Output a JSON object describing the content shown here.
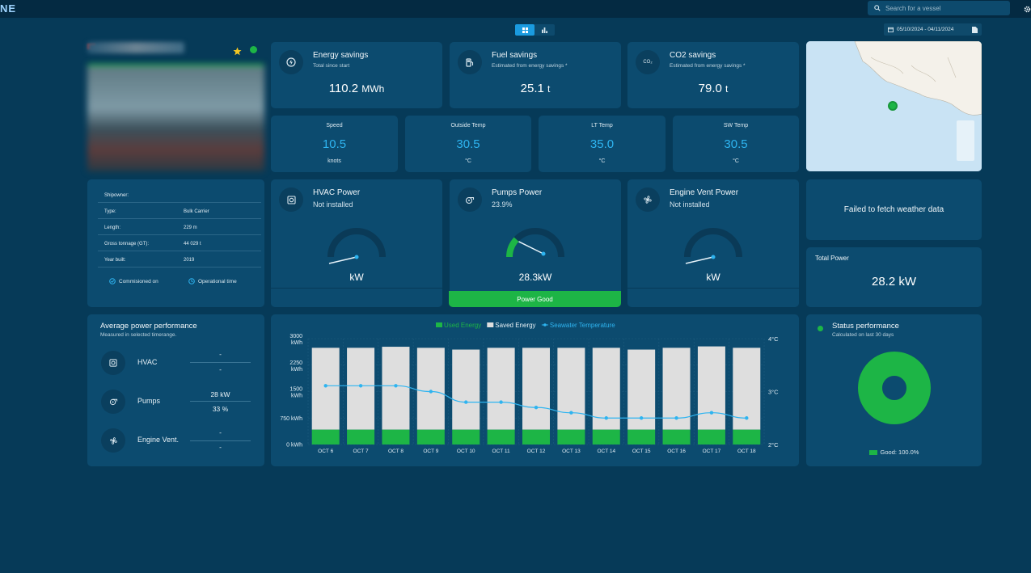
{
  "header": {
    "logo_text": "NE",
    "search_placeholder": "Search for a vessel",
    "date_range": "05/10/2024 - 04/11/2024"
  },
  "summary": [
    {
      "title": "Energy savings",
      "subtitle": "Total since start",
      "value": "110.2",
      "unit": "MWh",
      "icon": "bolt-icon"
    },
    {
      "title": "Fuel savings",
      "subtitle": "Estimated from energy savings *",
      "value": "25.1",
      "unit": "t",
      "icon": "fuel-pump-icon"
    },
    {
      "title": "CO2 savings",
      "subtitle": "Estimated from energy savings *",
      "value": "79.0",
      "unit": "t",
      "icon": "co2-icon",
      "icon_text": "CO₂"
    }
  ],
  "metrics": [
    {
      "label": "Speed",
      "value": "10.5",
      "unit": "knots"
    },
    {
      "label": "Outside Temp",
      "value": "30.5",
      "unit": "°C"
    },
    {
      "label": "LT Temp",
      "value": "35.0",
      "unit": "°C"
    },
    {
      "label": "SW Temp",
      "value": "30.5",
      "unit": "°C"
    }
  ],
  "vessel_info": {
    "rows": [
      {
        "label": "Shipowner:",
        "value": ""
      },
      {
        "label": "Type:",
        "value": "Bulk Carrier"
      },
      {
        "label": "Length:",
        "value": "229 m"
      },
      {
        "label": "Gross tonnage (GT):",
        "value": "44 029 t"
      },
      {
        "label": "Year built:",
        "value": "2019"
      }
    ],
    "commissioned_label": "Commisioned on",
    "operational_label": "Operational time"
  },
  "power_cards": [
    {
      "title": "HVAC Power",
      "status": "Not installed",
      "value": "kW",
      "gauge_fraction": 0.0,
      "icon": "hvac-icon"
    },
    {
      "title": "Pumps Power",
      "status": "23.9%",
      "value": "28.3kW",
      "gauge_fraction": 0.239,
      "icon": "pump-icon",
      "footer": "Power Good"
    },
    {
      "title": "Engine Vent Power",
      "status": "Not installed",
      "value": "kW",
      "gauge_fraction": 0.0,
      "icon": "fan-icon"
    }
  ],
  "weather": {
    "message": "Failed to fetch weather data"
  },
  "total_power": {
    "label": "Total Power",
    "value": "28.2 kW"
  },
  "avg_perf": {
    "title": "Average power performance",
    "subtitle": "Measured in selected timerange.",
    "rows": [
      {
        "label": "HVAC",
        "kw": "-",
        "pct": "-",
        "icon": "hvac-icon"
      },
      {
        "label": "Pumps",
        "kw": "28 kW",
        "pct": "33 %",
        "icon": "pump-icon"
      },
      {
        "label": "Engine Vent.",
        "kw": "-",
        "pct": "-",
        "icon": "fan-icon"
      }
    ]
  },
  "status_perf": {
    "title": "Status performance",
    "subtitle": "Calculated on last 30 days",
    "legend": "Good: 100.0%",
    "good_fraction": 1.0,
    "color": "#1db546"
  },
  "colors": {
    "accent": "#2eb4f0",
    "good": "#1db546",
    "card": "#0c4b6f",
    "background": "#063a58"
  },
  "chart_data": {
    "type": "bar",
    "categories": [
      "OCT 6",
      "OCT 7",
      "OCT 8",
      "OCT 9",
      "OCT 10",
      "OCT 11",
      "OCT 12",
      "OCT 13",
      "OCT 14",
      "OCT 15",
      "OCT 16",
      "OCT 17",
      "OCT 18"
    ],
    "series": [
      {
        "name": "Used Energy",
        "values": [
          420,
          420,
          420,
          420,
          420,
          420,
          420,
          420,
          420,
          420,
          420,
          420,
          420
        ],
        "color": "#1db546"
      },
      {
        "name": "Saved Energy",
        "values": [
          2320,
          2320,
          2350,
          2320,
          2270,
          2320,
          2320,
          2320,
          2320,
          2270,
          2320,
          2360,
          2320
        ],
        "color": "#dedede"
      },
      {
        "name": "Seawater Temperature",
        "values": [
          3.11,
          3.11,
          3.11,
          3.0,
          2.8,
          2.8,
          2.7,
          2.6,
          2.5,
          2.5,
          2.5,
          2.6,
          2.5
        ],
        "color": "#2eb4f0",
        "axis": "right"
      }
    ],
    "y_left_ticks": [
      {
        "value": 0,
        "label": "0 kWh"
      },
      {
        "value": 750,
        "label": "750 kWh"
      },
      {
        "value": 1500,
        "label": "1500 kWh"
      },
      {
        "value": 2250,
        "label": "2250 kWh"
      },
      {
        "value": 3000,
        "label": "3000 kWh"
      }
    ],
    "y_right_ticks": [
      {
        "value": 2,
        "label": "2°C"
      },
      {
        "value": 3,
        "label": "3°C"
      },
      {
        "value": 4,
        "label": "4°C"
      }
    ],
    "ylim_left": [
      0,
      3000
    ],
    "ylim_right": [
      2,
      4
    ],
    "grid": true,
    "legend_position": "top-center"
  }
}
